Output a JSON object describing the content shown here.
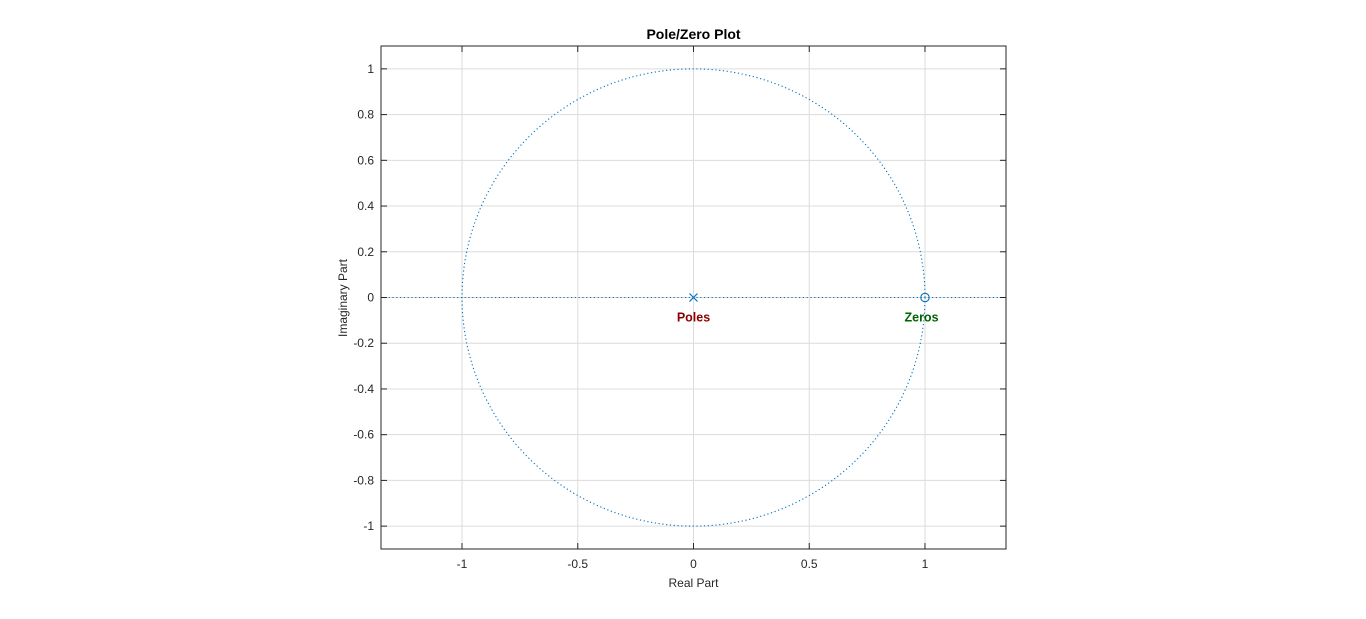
{
  "chart_data": {
    "type": "scatter",
    "title": "Pole/Zero Plot",
    "xlabel": "Real Part",
    "ylabel": "Imaginary Part",
    "xlim": [
      -1.35,
      1.35
    ],
    "ylim": [
      -1.1,
      1.1
    ],
    "grid": true,
    "unit_circle": true,
    "xticks": [
      -1,
      -0.5,
      0,
      0.5,
      1
    ],
    "xtick_labels": [
      "-1",
      "-0.5",
      "0",
      "0.5",
      "1"
    ],
    "yticks": [
      -1,
      -0.8,
      -0.6,
      -0.4,
      -0.2,
      0,
      0.2,
      0.4,
      0.6,
      0.8,
      1
    ],
    "ytick_labels": [
      "-1",
      "-0.8",
      "-0.6",
      "-0.4",
      "-0.2",
      "0",
      "0.2",
      "0.4",
      "0.6",
      "0.8",
      "1"
    ],
    "poles": [
      {
        "x": 0,
        "y": 0
      }
    ],
    "zeros": [
      {
        "x": 1,
        "y": 0
      }
    ],
    "annotations": [
      {
        "text": "Poles",
        "x": 0,
        "y": -0.105,
        "color": "#8b0000"
      },
      {
        "text": "Zeros",
        "x": 0.985,
        "y": -0.105,
        "color": "#006400"
      }
    ],
    "colors": {
      "markers": "#0072bd",
      "unit_circle": "#0072bd",
      "grid": "#dcdcdc",
      "axes": "#262626"
    }
  }
}
